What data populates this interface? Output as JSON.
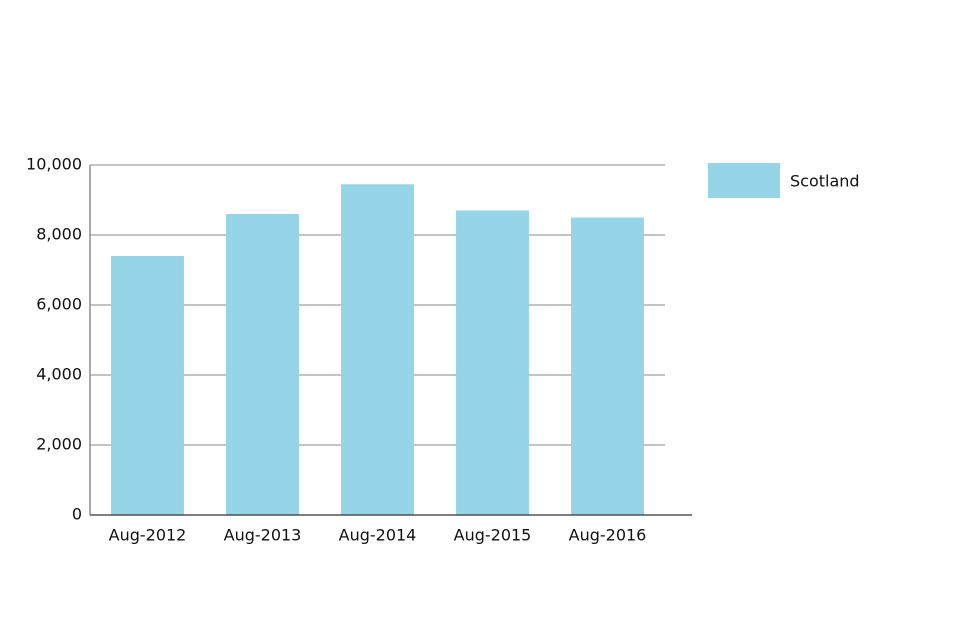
{
  "chart_data": {
    "type": "bar",
    "categories": [
      "Aug-2012",
      "Aug-2013",
      "Aug-2014",
      "Aug-2015",
      "Aug-2016"
    ],
    "series": [
      {
        "name": "Scotland",
        "color": "#96d4e8",
        "values": [
          7400,
          8600,
          9450,
          8700,
          8500
        ]
      }
    ],
    "ylim": [
      0,
      10000
    ],
    "yticks": [
      0,
      {
        "value": 2000,
        "label": "2,000"
      },
      {
        "value": 4000,
        "label": "4,000"
      },
      {
        "value": 6000,
        "label": "6,000"
      },
      {
        "value": 8000,
        "label": "8,000"
      },
      {
        "value": 10000,
        "label": "10,000"
      }
    ],
    "grid": true,
    "legend": "right"
  }
}
